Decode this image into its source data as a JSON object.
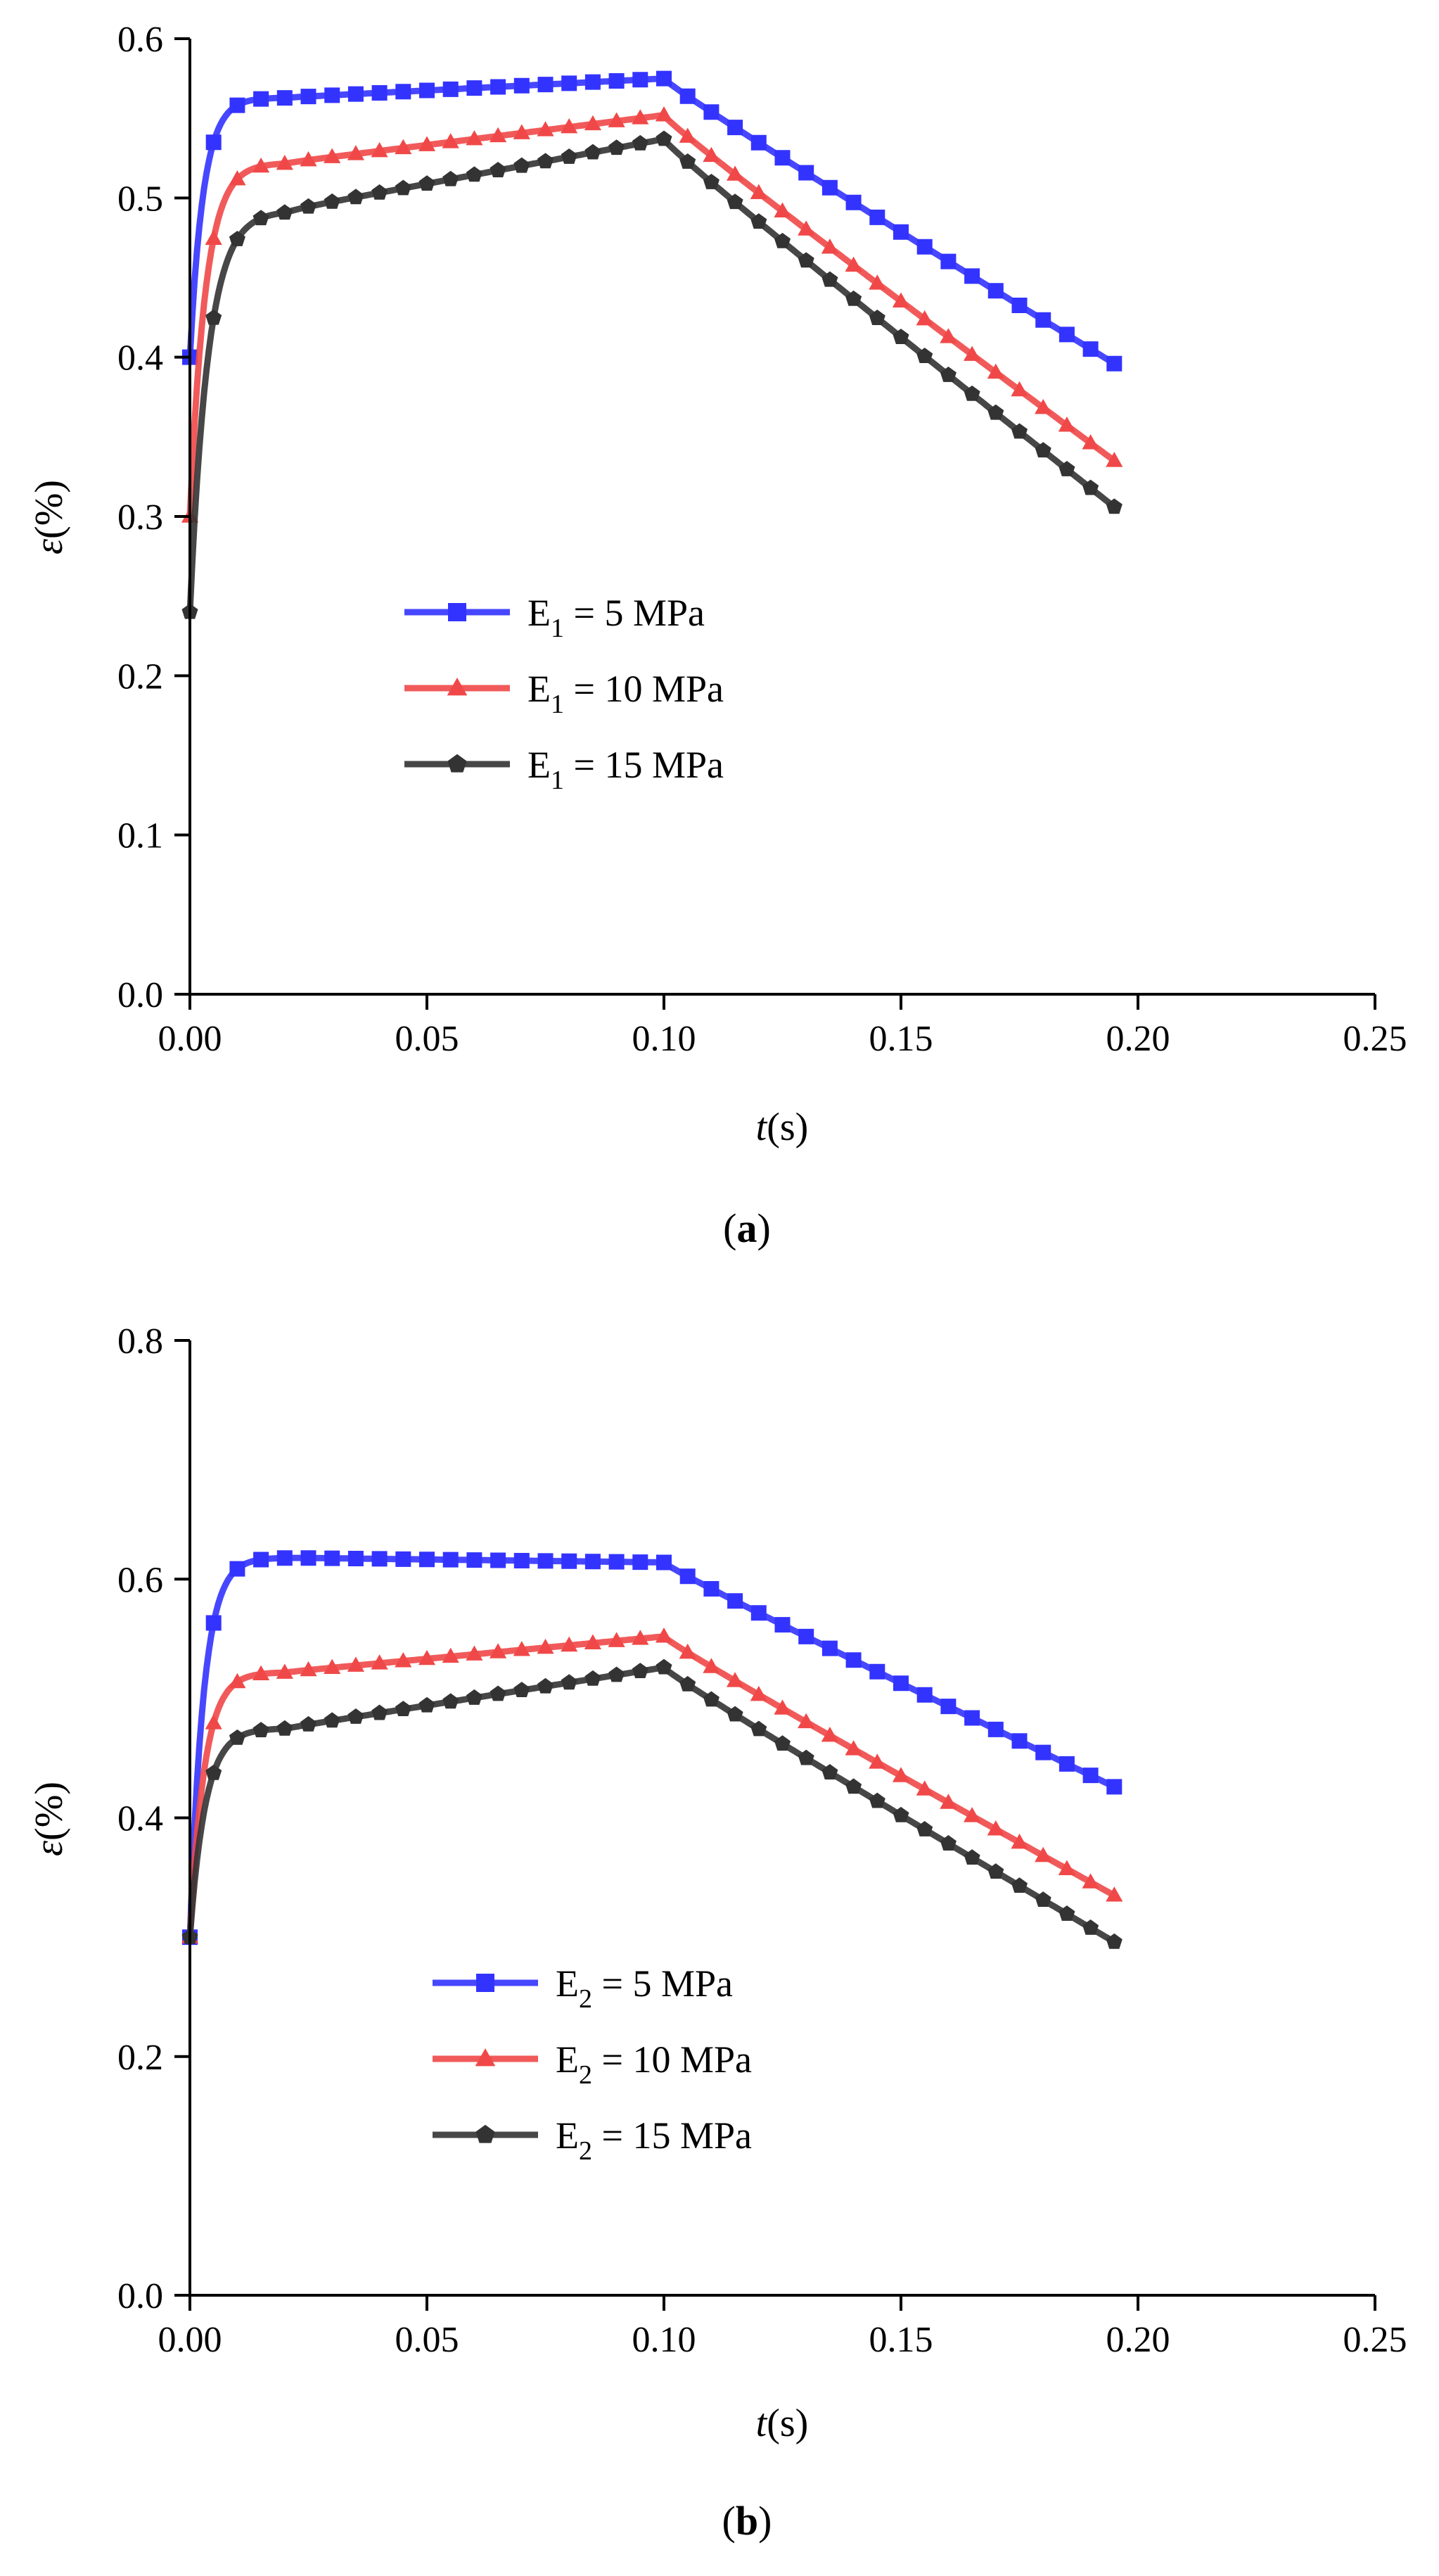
{
  "chart_data": [
    {
      "type": "line",
      "panel_label": "a",
      "title": "",
      "xlabel_italic": "t",
      "xlabel_unit": "(s)",
      "ylabel_symbol": "ε",
      "ylabel_unit": "(%)",
      "xlim": [
        0,
        0.25
      ],
      "ylim": [
        0,
        0.6
      ],
      "xticks": [
        0.0,
        0.05,
        0.1,
        0.15,
        0.2,
        0.25
      ],
      "xtick_labels": [
        "0.00",
        "0.05",
        "0.10",
        "0.15",
        "0.20",
        "0.25"
      ],
      "yticks": [
        0.0,
        0.1,
        0.2,
        0.3,
        0.4,
        0.5,
        0.6
      ],
      "ytick_labels": [
        "0.0",
        "0.1",
        "0.2",
        "0.3",
        "0.4",
        "0.5",
        "0.6"
      ],
      "grid": false,
      "legend_position": "center-left",
      "series": [
        {
          "name": "E1 = 5 MPa",
          "legend_base": "E",
          "legend_sub": "1",
          "legend_rest": " = 5 MPa",
          "color": "#3333ff",
          "marker": "square",
          "peak": 0.575,
          "y0": 0.4,
          "ymax_at_plateau_start": 0.563,
          "y_end": 0.396,
          "k": 160
        },
        {
          "name": "E1 = 10 MPa",
          "legend_base": "E",
          "legend_sub": "1",
          "legend_rest": " = 10 MPa",
          "color": "#f04848",
          "marker": "triangle",
          "peak": 0.552,
          "y0": 0.3,
          "ymax_at_plateau_start": 0.522,
          "y_end": 0.335,
          "k": 140
        },
        {
          "name": "E1 = 15 MPa",
          "legend_base": "E",
          "legend_sub": "1",
          "legend_rest": " = 15 MPa",
          "color": "#333333",
          "marker": "pentagon",
          "peak": 0.537,
          "y0": 0.24,
          "ymax_at_plateau_start": 0.492,
          "y_end": 0.306,
          "k": 120
        }
      ]
    },
    {
      "type": "line",
      "panel_label": "b",
      "title": "",
      "xlabel_italic": "t",
      "xlabel_unit": "(s)",
      "ylabel_symbol": "ε",
      "ylabel_unit": "(%)",
      "xlim": [
        0,
        0.25
      ],
      "ylim": [
        0,
        0.8
      ],
      "xticks": [
        0.0,
        0.05,
        0.1,
        0.15,
        0.2,
        0.25
      ],
      "xtick_labels": [
        "0.00",
        "0.05",
        "0.10",
        "0.15",
        "0.20",
        "0.25"
      ],
      "yticks": [
        0.0,
        0.2,
        0.4,
        0.6,
        0.8
      ],
      "ytick_labels": [
        "0.0",
        "0.2",
        "0.4",
        "0.6",
        "0.8"
      ],
      "grid": false,
      "legend_position": "bottom-center",
      "series": [
        {
          "name": "E2 = 5 MPa",
          "legend_base": "E",
          "legend_sub": "2",
          "legend_rest": " = 5 MPa",
          "color": "#3333ff",
          "marker": "square",
          "peak": 0.614,
          "y0": 0.3,
          "ymax_at_plateau_start": 0.618,
          "y_end": 0.426,
          "k": 160
        },
        {
          "name": "E2 = 10 MPa",
          "legend_base": "E",
          "legend_sub": "2",
          "legend_rest": " = 10 MPa",
          "color": "#f04848",
          "marker": "triangle",
          "peak": 0.552,
          "y0": 0.3,
          "ymax_at_plateau_start": 0.522,
          "y_end": 0.335,
          "k": 150
        },
        {
          "name": "E2 = 15 MPa",
          "legend_base": "E",
          "legend_sub": "2",
          "legend_rest": " = 15 MPa",
          "color": "#333333",
          "marker": "pentagon",
          "peak": 0.526,
          "y0": 0.3,
          "ymax_at_plateau_start": 0.475,
          "y_end": 0.296,
          "k": 140
        }
      ]
    }
  ]
}
